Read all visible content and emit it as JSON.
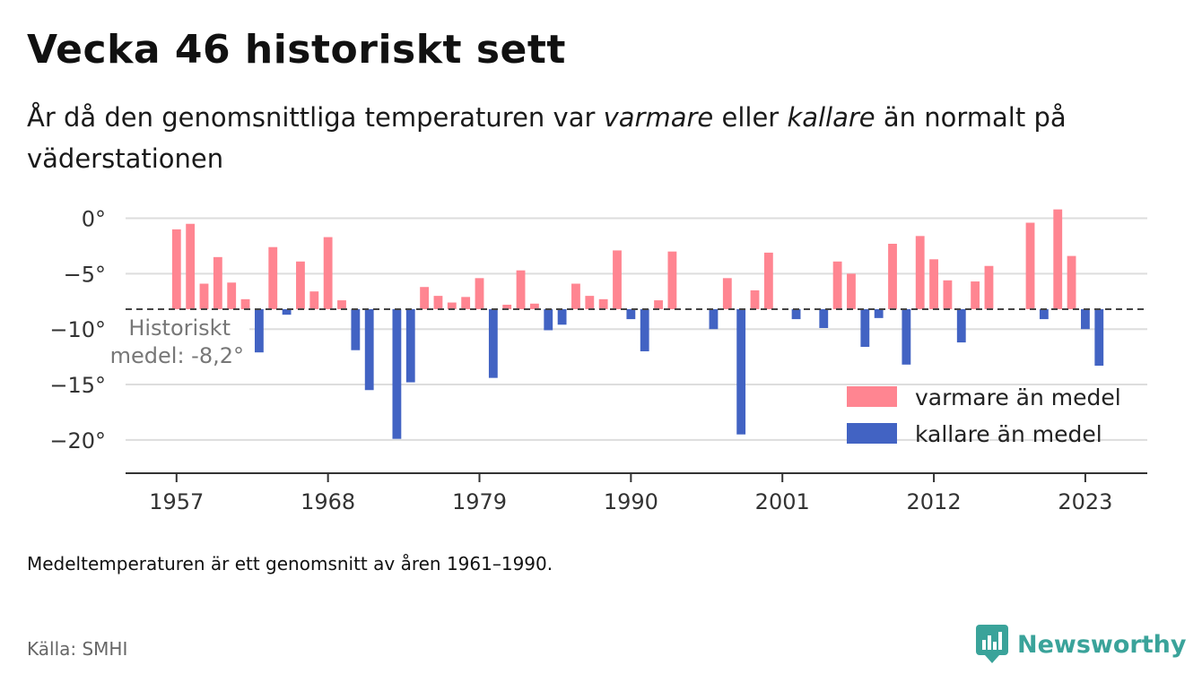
{
  "header": {
    "title": "Vecka 46 historiskt sett",
    "subtitle_1": "År då den genomsnittliga temperaturen var ",
    "subtitle_em1": "varmare",
    "subtitle_2": " eller ",
    "subtitle_em2": "kallare",
    "subtitle_3": " än normalt på väderstationen"
  },
  "chart_data": {
    "type": "bar",
    "baseline": -8.2,
    "baseline_label_line1": "Historiskt",
    "baseline_label_line2": "medel: -8,2°",
    "ylim": [
      -23,
      1.5
    ],
    "yticks": [
      0,
      -5,
      -10,
      -15,
      -20
    ],
    "ytick_labels": [
      "0°",
      "−5°",
      "−10°",
      "−15°",
      "−20°"
    ],
    "xticks": [
      1957,
      1968,
      1979,
      1990,
      2001,
      2012,
      2023
    ],
    "xlim": [
      1953.3,
      2027.5
    ],
    "legend": {
      "position": "bottom-right",
      "warm_label": "varmare än medel",
      "cold_label": "kallare än medel"
    },
    "colors": {
      "warm": "#ff8591",
      "cold": "#4263c3",
      "baseline": "#444444",
      "grid": "#dddddd"
    },
    "points": [
      {
        "x": 1957,
        "y": -1.0
      },
      {
        "x": 1958,
        "y": -0.5
      },
      {
        "x": 1959,
        "y": -5.9
      },
      {
        "x": 1960,
        "y": -3.5
      },
      {
        "x": 1961,
        "y": -5.8
      },
      {
        "x": 1962,
        "y": -7.3
      },
      {
        "x": 1963,
        "y": -12.1
      },
      {
        "x": 1964,
        "y": -2.6
      },
      {
        "x": 1965,
        "y": -8.7
      },
      {
        "x": 1966,
        "y": -3.9
      },
      {
        "x": 1967,
        "y": -6.6
      },
      {
        "x": 1968,
        "y": -1.7
      },
      {
        "x": 1969,
        "y": -7.4
      },
      {
        "x": 1970,
        "y": -11.9
      },
      {
        "x": 1971,
        "y": -15.5
      },
      {
        "x": 1973,
        "y": -19.9
      },
      {
        "x": 1974,
        "y": -14.8
      },
      {
        "x": 1975,
        "y": -6.2
      },
      {
        "x": 1976,
        "y": -7.0
      },
      {
        "x": 1977,
        "y": -7.6
      },
      {
        "x": 1978,
        "y": -7.1
      },
      {
        "x": 1979,
        "y": -5.4
      },
      {
        "x": 1980,
        "y": -14.4
      },
      {
        "x": 1981,
        "y": -7.8
      },
      {
        "x": 1982,
        "y": -4.7
      },
      {
        "x": 1983,
        "y": -7.7
      },
      {
        "x": 1984,
        "y": -10.1
      },
      {
        "x": 1985,
        "y": -9.6
      },
      {
        "x": 1986,
        "y": -5.9
      },
      {
        "x": 1987,
        "y": -7.0
      },
      {
        "x": 1988,
        "y": -7.3
      },
      {
        "x": 1989,
        "y": -2.9
      },
      {
        "x": 1990,
        "y": -9.1
      },
      {
        "x": 1991,
        "y": -12.0
      },
      {
        "x": 1992,
        "y": -7.4
      },
      {
        "x": 1993,
        "y": -3.0
      },
      {
        "x": 1996,
        "y": -10.0
      },
      {
        "x": 1997,
        "y": -5.4
      },
      {
        "x": 1998,
        "y": -19.5
      },
      {
        "x": 1999,
        "y": -6.5
      },
      {
        "x": 2000,
        "y": -3.1
      },
      {
        "x": 2002,
        "y": -9.1
      },
      {
        "x": 2004,
        "y": -9.9
      },
      {
        "x": 2005,
        "y": -3.9
      },
      {
        "x": 2006,
        "y": -5.0
      },
      {
        "x": 2007,
        "y": -11.6
      },
      {
        "x": 2008,
        "y": -9.0
      },
      {
        "x": 2009,
        "y": -2.3
      },
      {
        "x": 2010,
        "y": -13.2
      },
      {
        "x": 2011,
        "y": -1.6
      },
      {
        "x": 2012,
        "y": -3.7
      },
      {
        "x": 2013,
        "y": -5.6
      },
      {
        "x": 2014,
        "y": -11.2
      },
      {
        "x": 2015,
        "y": -5.7
      },
      {
        "x": 2016,
        "y": -4.3
      },
      {
        "x": 2019,
        "y": -0.4
      },
      {
        "x": 2020,
        "y": -9.1
      },
      {
        "x": 2021,
        "y": 0.8
      },
      {
        "x": 2022,
        "y": -3.4
      },
      {
        "x": 2023,
        "y": -10.0
      },
      {
        "x": 2024,
        "y": -13.3
      }
    ]
  },
  "footer": {
    "note": "Medeltemperaturen är ett genomsnitt av åren 1961–1990.",
    "source": "Källa: SMHI",
    "brand": "Newsworthy",
    "brand_icon": "newsworthy-logo-icon"
  }
}
